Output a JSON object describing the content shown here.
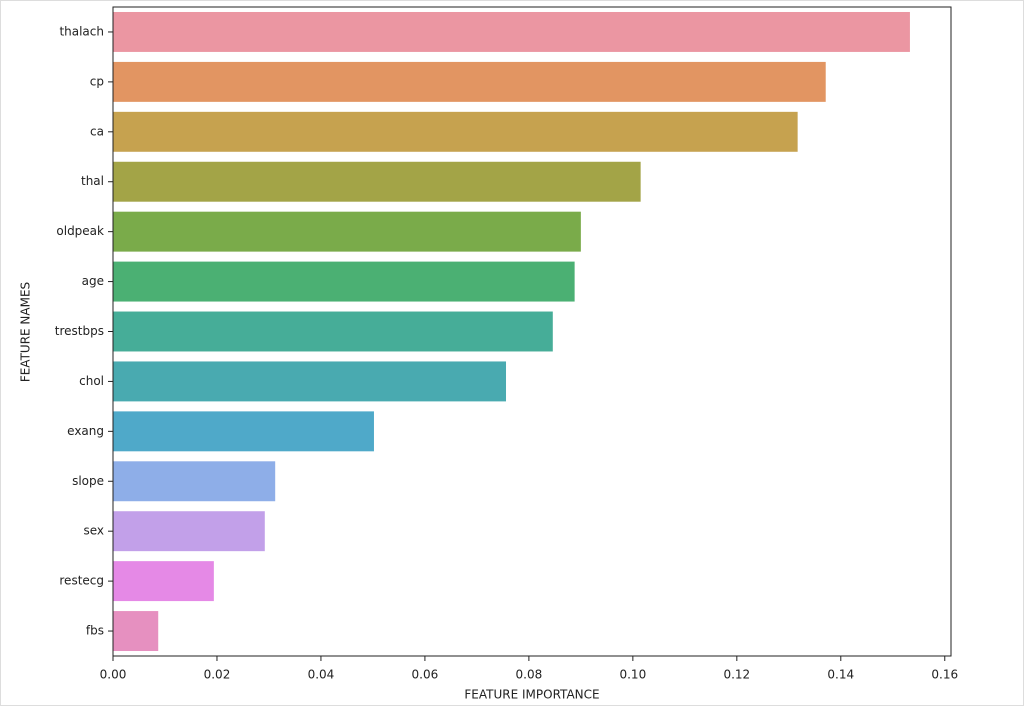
{
  "chart_data": {
    "type": "barh",
    "xlabel": "FEATURE IMPORTANCE",
    "ylabel": "FEATURE NAMES",
    "categories": [
      "thalach",
      "cp",
      "ca",
      "thal",
      "oldpeak",
      "age",
      "trestbps",
      "chol",
      "exang",
      "slope",
      "sex",
      "restecg",
      "fbs"
    ],
    "values": [
      0.1533,
      0.1371,
      0.1317,
      0.1015,
      0.09,
      0.0888,
      0.0846,
      0.0756,
      0.0502,
      0.0312,
      0.0292,
      0.0194,
      0.0087
    ],
    "colors": [
      "#eb96a2",
      "#e29562",
      "#c6a24f",
      "#a3a447",
      "#7aab4a",
      "#4bb073",
      "#46ad98",
      "#49aab0",
      "#4fa9c9",
      "#8eaee8",
      "#c2a0e9",
      "#e589e6",
      "#e690c0"
    ],
    "xlim": [
      0,
      0.1612
    ],
    "xticks": [
      {
        "value": 0,
        "label": "0.00"
      },
      {
        "value": 0.02,
        "label": "0.02"
      },
      {
        "value": 0.04,
        "label": "0.04"
      },
      {
        "value": 0.06,
        "label": "0.06"
      },
      {
        "value": 0.08,
        "label": "0.08"
      },
      {
        "value": 0.1,
        "label": "0.10"
      },
      {
        "value": 0.12,
        "label": "0.12"
      },
      {
        "value": 0.14,
        "label": "0.14"
      },
      {
        "value": 0.16,
        "label": "0.16"
      }
    ]
  }
}
